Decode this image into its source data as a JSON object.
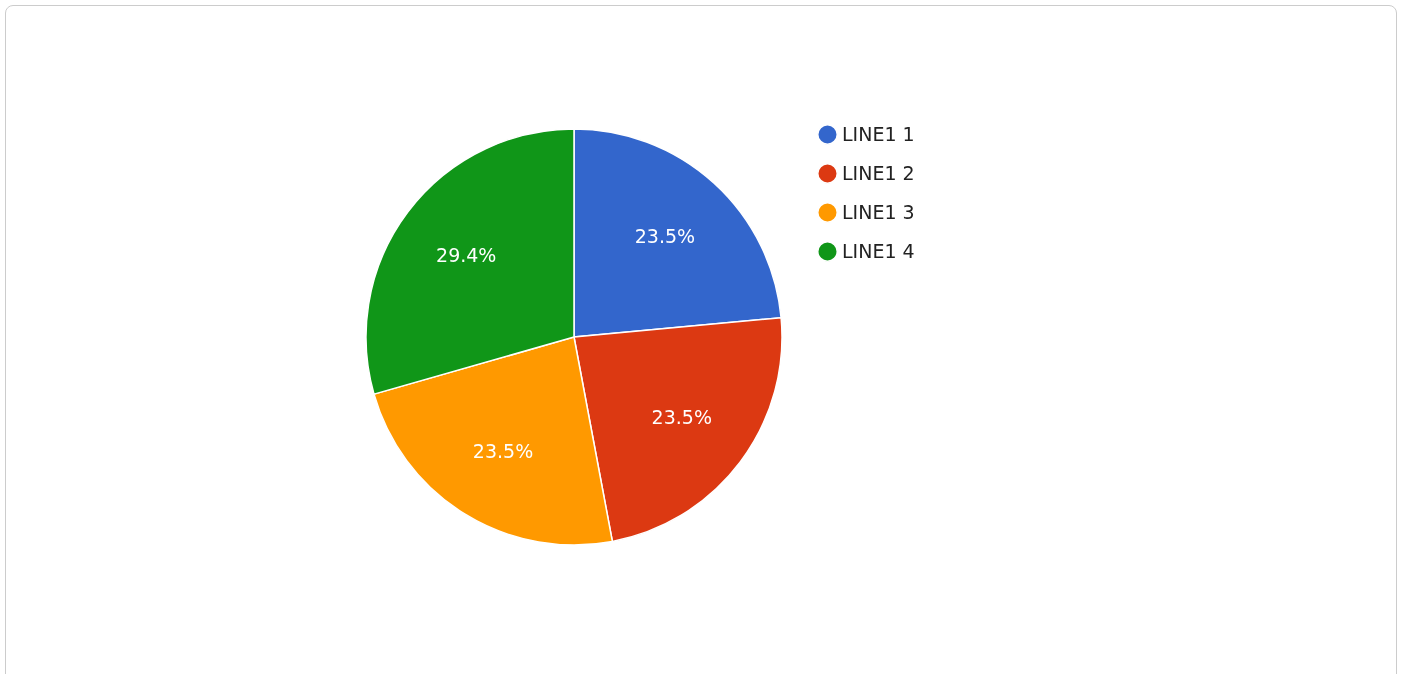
{
  "chart_data": {
    "type": "pie",
    "categories": [
      "LINE1 1",
      "LINE1 2",
      "LINE1 3",
      "LINE1 4"
    ],
    "values": [
      23.5,
      23.5,
      23.5,
      29.4
    ],
    "colors": [
      "#3366cc",
      "#dc3912",
      "#ff9900",
      "#109618"
    ],
    "value_labels": [
      "23.5%",
      "23.5%",
      "23.5%",
      "29.4%"
    ],
    "legend": "right"
  }
}
